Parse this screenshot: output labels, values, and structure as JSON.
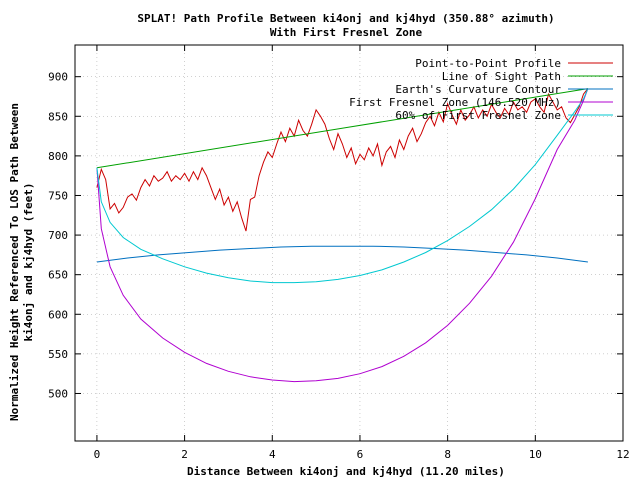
{
  "chart_data": {
    "type": "line",
    "title": "SPLAT! Path Profile Between ki4onj and kj4hyd (350.88° azimuth)",
    "subtitle": "With First Fresnel Zone",
    "xlabel": "Distance Between ki4onj and kj4hyd (11.20 miles)",
    "ylabel_line1": "Normalized Height Referenced To LOS Path Between",
    "ylabel_line2": "ki4onj and kj4hyd (feet)",
    "xlim": [
      -0.5,
      12
    ],
    "ylim": [
      440,
      940
    ],
    "xticks": [
      0,
      2,
      4,
      6,
      8,
      10,
      12
    ],
    "yticks": [
      500,
      550,
      600,
      650,
      700,
      750,
      800,
      850,
      900
    ],
    "xtick_labels": [
      "0",
      "2",
      "4",
      "6",
      "8",
      "10",
      "12"
    ],
    "ytick_labels": [
      "500",
      "550",
      "600",
      "650",
      "700",
      "750",
      "800",
      "850",
      "900"
    ],
    "grid": true,
    "legend_position": "top-right",
    "series": [
      {
        "name": "Point-to-Point Profile",
        "color": "#cc0000",
        "x": [
          0.0,
          0.1,
          0.2,
          0.3,
          0.4,
          0.5,
          0.6,
          0.7,
          0.8,
          0.9,
          1.0,
          1.1,
          1.2,
          1.3,
          1.4,
          1.5,
          1.6,
          1.7,
          1.8,
          1.9,
          2.0,
          2.1,
          2.2,
          2.3,
          2.4,
          2.5,
          2.6,
          2.7,
          2.8,
          2.9,
          3.0,
          3.1,
          3.2,
          3.3,
          3.4,
          3.5,
          3.6,
          3.7,
          3.8,
          3.9,
          4.0,
          4.1,
          4.2,
          4.3,
          4.4,
          4.5,
          4.6,
          4.7,
          4.8,
          4.9,
          5.0,
          5.1,
          5.2,
          5.3,
          5.4,
          5.5,
          5.6,
          5.7,
          5.8,
          5.9,
          6.0,
          6.1,
          6.2,
          6.3,
          6.4,
          6.5,
          6.6,
          6.7,
          6.8,
          6.9,
          7.0,
          7.1,
          7.2,
          7.3,
          7.4,
          7.5,
          7.6,
          7.7,
          7.8,
          7.9,
          8.0,
          8.1,
          8.2,
          8.3,
          8.4,
          8.5,
          8.6,
          8.7,
          8.8,
          8.9,
          9.0,
          9.1,
          9.2,
          9.3,
          9.4,
          9.5,
          9.6,
          9.7,
          9.8,
          9.9,
          10.0,
          10.1,
          10.2,
          10.3,
          10.4,
          10.5,
          10.6,
          10.7,
          10.8,
          10.9,
          11.0,
          11.1,
          11.2
        ],
        "values": [
          760,
          783,
          770,
          733,
          740,
          728,
          735,
          748,
          752,
          744,
          760,
          770,
          762,
          775,
          768,
          772,
          780,
          768,
          775,
          770,
          778,
          768,
          780,
          770,
          785,
          775,
          760,
          745,
          758,
          738,
          748,
          730,
          742,
          722,
          705,
          745,
          748,
          775,
          792,
          805,
          798,
          815,
          830,
          818,
          835,
          825,
          845,
          832,
          825,
          840,
          858,
          850,
          840,
          822,
          808,
          828,
          815,
          798,
          810,
          790,
          802,
          795,
          810,
          800,
          815,
          788,
          805,
          812,
          798,
          820,
          808,
          825,
          835,
          818,
          828,
          842,
          850,
          838,
          855,
          843,
          866,
          852,
          840,
          858,
          845,
          852,
          862,
          848,
          858,
          850,
          865,
          855,
          848,
          860,
          852,
          868,
          858,
          862,
          855,
          868,
          872,
          862,
          855,
          878,
          868,
          858,
          862,
          848,
          842,
          852,
          862,
          878,
          885
        ]
      },
      {
        "name": "Line of Sight Path",
        "color": "#00a000",
        "x": [
          0,
          11.2
        ],
        "values": [
          785,
          885
        ]
      },
      {
        "name": "Earth's Curvature Contour",
        "color": "#0070c0",
        "x": [
          0,
          0.7,
          1.4,
          2.1,
          2.8,
          3.5,
          4.2,
          4.9,
          5.6,
          6.3,
          7.0,
          7.7,
          8.4,
          9.1,
          9.8,
          10.5,
          11.2
        ],
        "values": [
          666,
          671,
          675,
          678,
          681,
          683,
          685,
          686,
          686,
          686,
          685,
          683,
          681,
          678,
          675,
          671,
          666
        ]
      },
      {
        "name": "First Fresnel Zone (146.520 MHz)",
        "color": "#b000d0",
        "x": [
          0,
          0.1,
          0.3,
          0.6,
          1.0,
          1.5,
          2.0,
          2.5,
          3.0,
          3.5,
          4.0,
          4.5,
          5.0,
          5.5,
          6.0,
          6.5,
          7.0,
          7.5,
          8.0,
          8.5,
          9.0,
          9.5,
          10.0,
          10.5,
          10.9,
          11.1,
          11.2
        ],
        "values": [
          785,
          708,
          660,
          624,
          594,
          570,
          552,
          538,
          528,
          521,
          517,
          515,
          516,
          519,
          525,
          534,
          547,
          564,
          586,
          614,
          648,
          691,
          746,
          808,
          845,
          870,
          885
        ]
      },
      {
        "name": "60% of First Fresnel Zone",
        "color": "#00c8d0",
        "x": [
          0,
          0.1,
          0.3,
          0.6,
          1.0,
          1.5,
          2.0,
          2.5,
          3.0,
          3.5,
          4.0,
          4.5,
          5.0,
          5.5,
          6.0,
          6.5,
          7.0,
          7.5,
          8.0,
          8.5,
          9.0,
          9.5,
          10.0,
          10.5,
          10.9,
          11.1,
          11.2
        ],
        "values": [
          785,
          742,
          716,
          697,
          682,
          670,
          660,
          652,
          646,
          642,
          640,
          640,
          641,
          644,
          649,
          656,
          666,
          678,
          693,
          711,
          732,
          758,
          789,
          826,
          856,
          872,
          885
        ]
      }
    ]
  }
}
